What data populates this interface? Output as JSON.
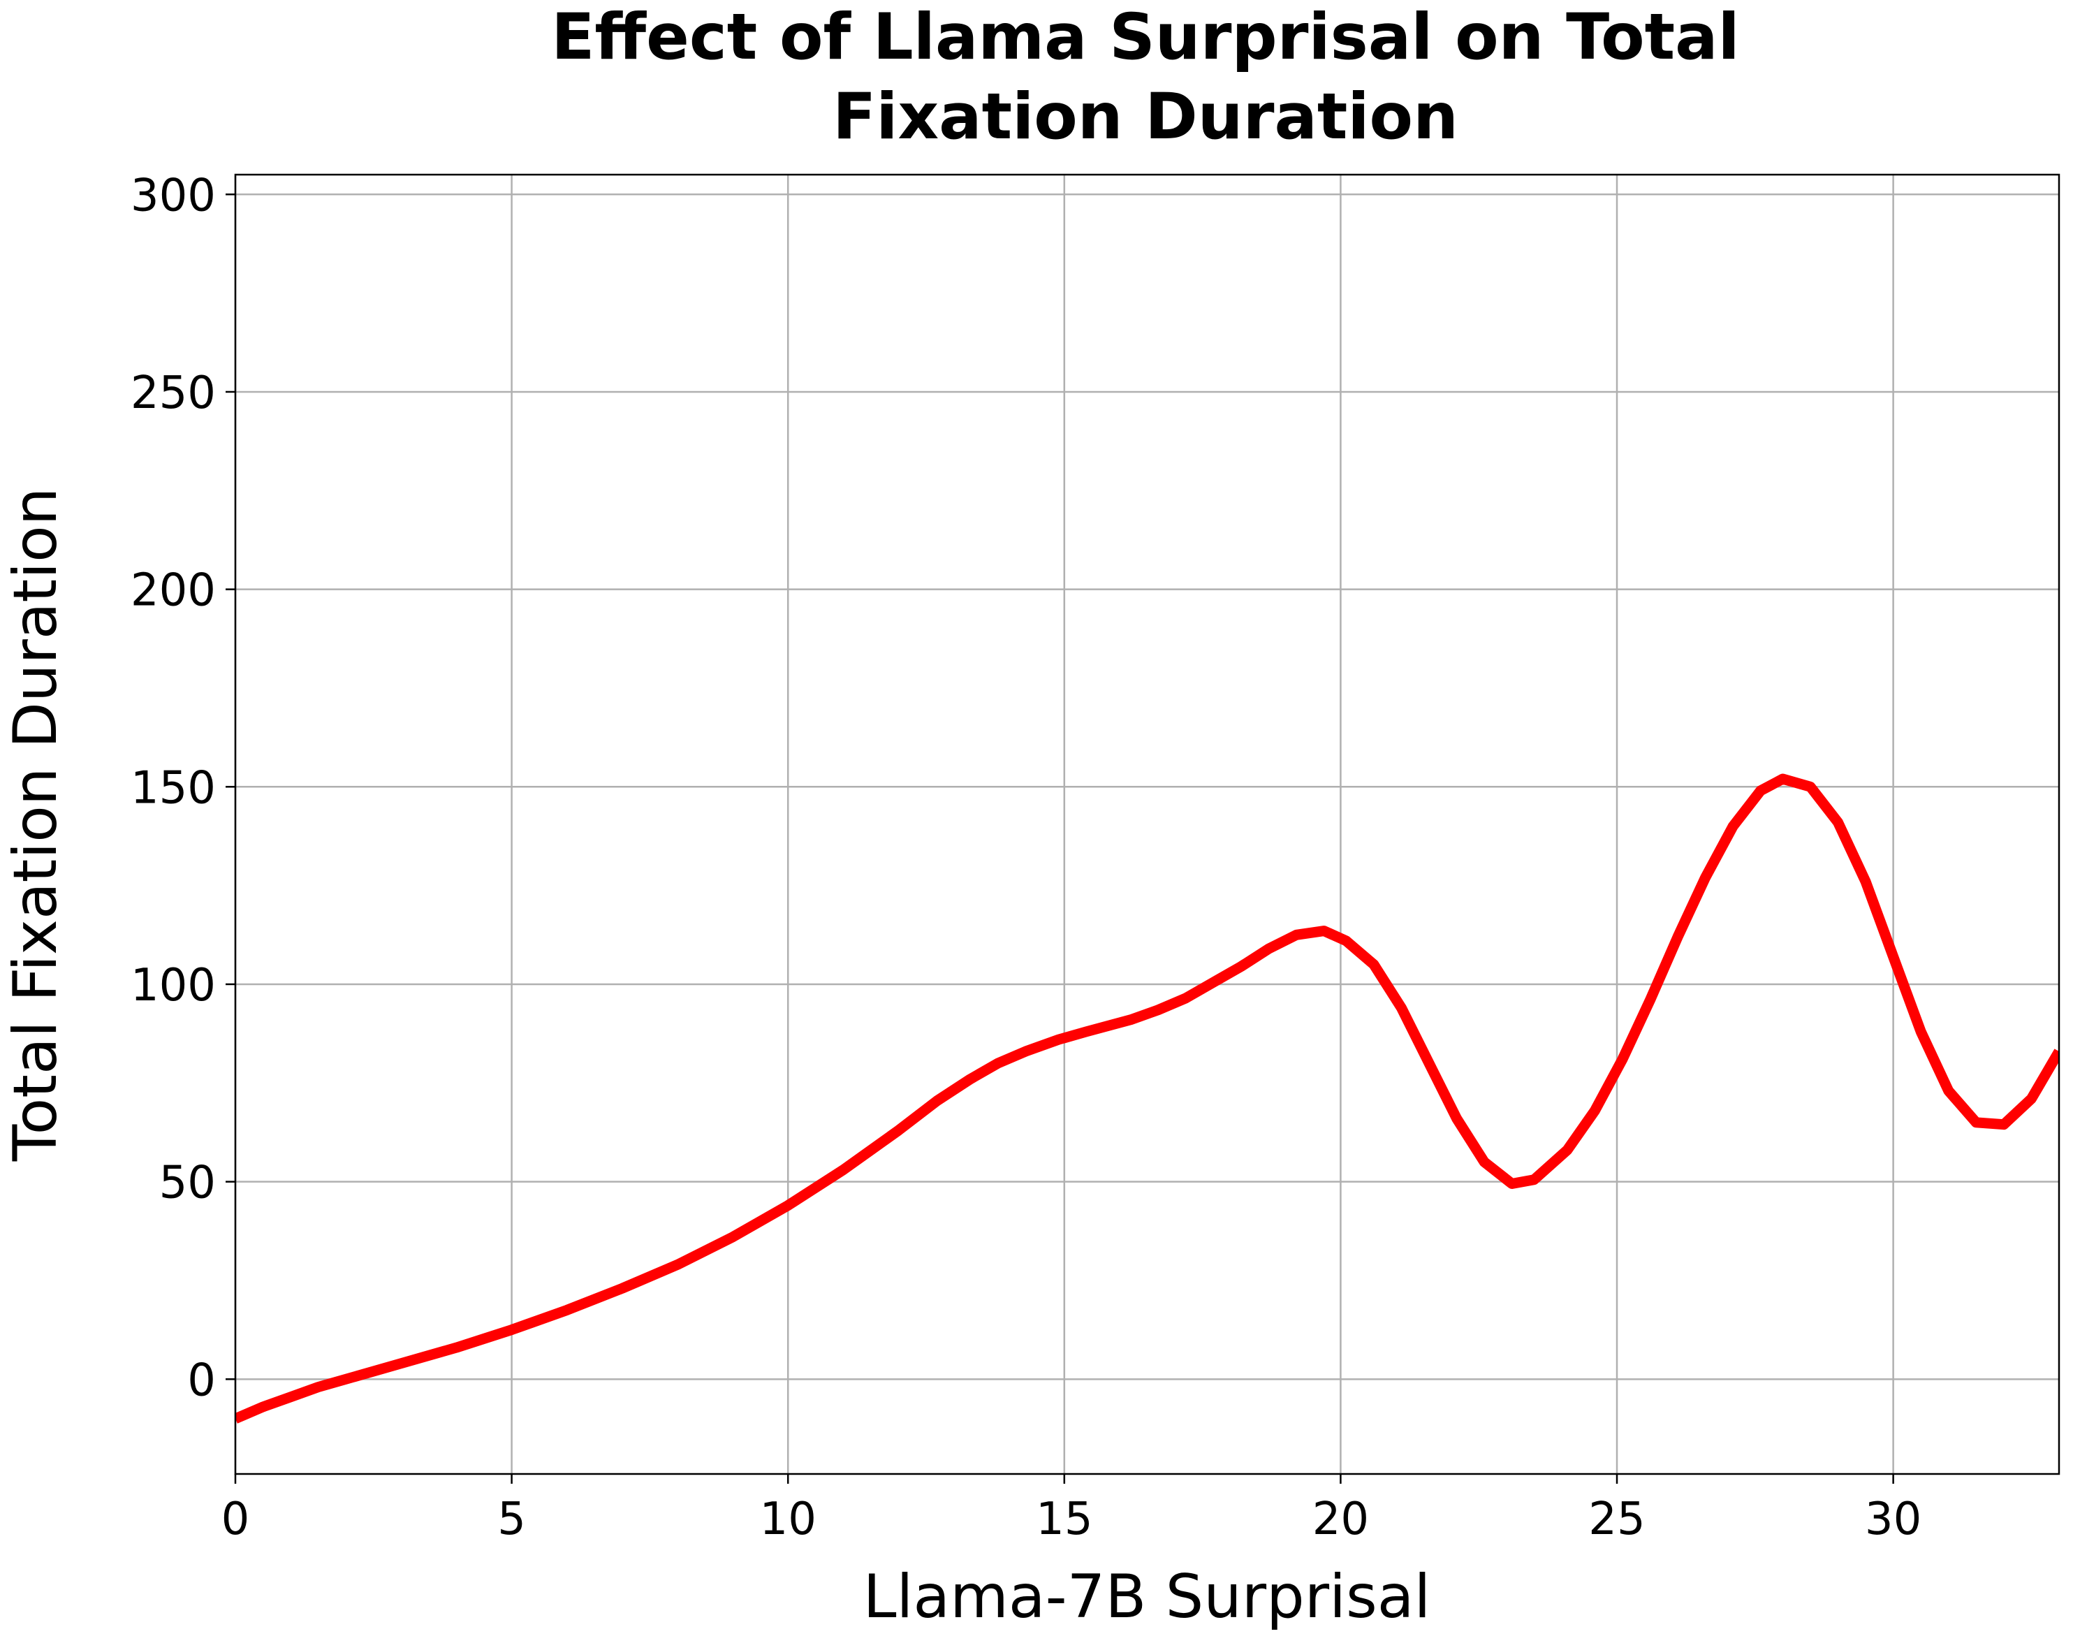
{
  "chart_data": {
    "type": "line",
    "title_lines": [
      "Effect of Llama Surprisal on Total",
      "Fixation Duration"
    ],
    "xlabel": "Llama-7B Surprisal",
    "ylabel": "Total Fixation Duration",
    "xlim": [
      0,
      33
    ],
    "ylim": [
      -24,
      305
    ],
    "xticks": [
      0,
      5,
      10,
      15,
      20,
      25,
      30
    ],
    "yticks": [
      0,
      50,
      100,
      150,
      200,
      250,
      300
    ],
    "grid": true,
    "legend": "none",
    "series": [
      {
        "color": "#ff0000",
        "x": [
          0,
          0.5,
          1,
          1.5,
          2,
          3,
          4,
          5,
          6,
          7,
          8,
          9,
          10,
          11,
          12,
          12.7,
          13.3,
          13.8,
          14.3,
          14.9,
          15.4,
          16.2,
          16.7,
          17.2,
          17.7,
          18.2,
          18.7,
          19.2,
          19.7,
          20.1,
          20.6,
          21.1,
          21.6,
          22.1,
          22.6,
          23.1,
          23.5,
          24.1,
          24.6,
          25.1,
          25.6,
          26.1,
          26.6,
          27.1,
          27.6,
          28.0,
          28.5,
          29.0,
          29.5,
          30.0,
          30.5,
          31.0,
          31.5,
          32.0,
          32.5,
          33.0
        ],
        "y": [
          -10,
          -7,
          -4.5,
          -2,
          0,
          4,
          8,
          12.5,
          17.5,
          23,
          29,
          36,
          44,
          53,
          63,
          70.5,
          76,
          80,
          83,
          86,
          88,
          91,
          93.5,
          96.5,
          100.5,
          104.5,
          109,
          112.5,
          113.5,
          111,
          105,
          94,
          80,
          66,
          55,
          49.5,
          50.5,
          58,
          68,
          81,
          96,
          112,
          127,
          140,
          149,
          152,
          150,
          141,
          126,
          107,
          88,
          73,
          65,
          64.5,
          71,
          83
        ]
      }
    ]
  }
}
